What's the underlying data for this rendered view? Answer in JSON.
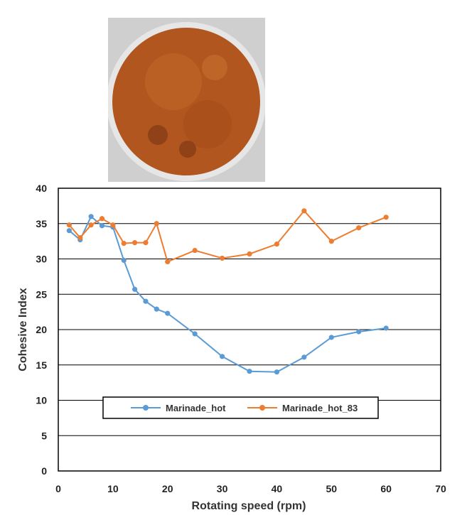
{
  "photo": {
    "icon": "marinade-bowl-photo",
    "background_color": "#cfcfcf",
    "rim_color": "#e6e6e6",
    "content_color": "#b0561e"
  },
  "chart_data": {
    "type": "line",
    "title": "",
    "xlabel": "Rotating speed (rpm)",
    "ylabel": "Cohesive Index",
    "xlim": [
      0,
      70
    ],
    "ylim": [
      0,
      40
    ],
    "xticks": [
      "0",
      "10",
      "20",
      "30",
      "40",
      "50",
      "60",
      "70"
    ],
    "yticks": [
      "0",
      "5",
      "10",
      "15",
      "20",
      "25",
      "30",
      "35",
      "40"
    ],
    "x_tick_values": [
      0,
      10,
      20,
      30,
      40,
      50,
      60,
      70
    ],
    "y_tick_values": [
      0,
      5,
      10,
      15,
      20,
      25,
      30,
      35,
      40
    ],
    "grid": "horizontal",
    "legend_position": "bottom-center",
    "series": [
      {
        "name": "Marinade_hot",
        "color": "#5b9bd5",
        "x": [
          2,
          4,
          6,
          8,
          10,
          12,
          14,
          16,
          18,
          20,
          25,
          30,
          35,
          40,
          45,
          50,
          55,
          60
        ],
        "y": [
          34.0,
          32.7,
          36.0,
          34.7,
          34.5,
          29.8,
          25.7,
          24.0,
          22.9,
          22.3,
          19.4,
          16.2,
          14.1,
          14.0,
          16.1,
          18.9,
          19.7,
          20.2
        ]
      },
      {
        "name": "Marinade_hot_83",
        "color": "#ed7d31",
        "x": [
          2,
          4,
          6,
          8,
          10,
          12,
          14,
          16,
          18,
          20,
          25,
          30,
          35,
          40,
          45,
          50,
          55,
          60
        ],
        "y": [
          34.8,
          33.0,
          34.8,
          35.7,
          34.8,
          32.2,
          32.3,
          32.3,
          35.0,
          29.6,
          31.2,
          30.1,
          30.7,
          32.1,
          36.8,
          32.5,
          34.4,
          35.9
        ]
      }
    ]
  }
}
